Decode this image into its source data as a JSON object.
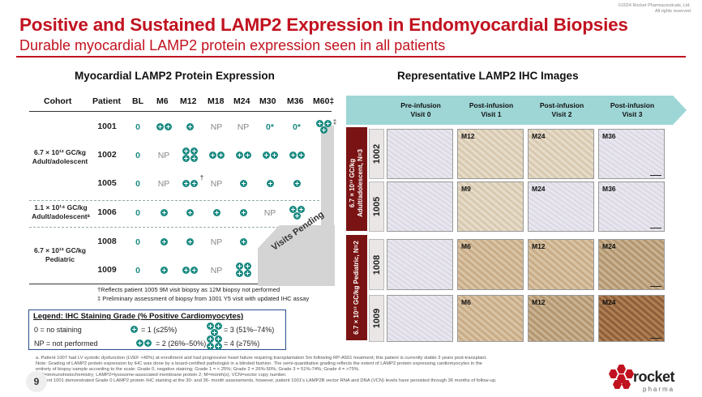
{
  "copyright": [
    "©2024 Rocket Pharmaceuticals, Ltd.",
    "All rights reserved"
  ],
  "title": "Positive and Sustained LAMP2 Expression in Endomyocardial Biopsies",
  "subtitle": "Durable myocardial LAMP2 protein expression seen in all patients",
  "left_panel": {
    "title": "Myocardial LAMP2 Protein Expression",
    "headers": [
      "Cohort",
      "Patient",
      "BL",
      "M6",
      "M12",
      "M18",
      "M24",
      "M30",
      "M36",
      "M60‡"
    ],
    "cohorts": [
      "6.7 × 10¹³ GC/kg Adult/adolescent",
      "1.1 × 10¹⁴ GC/kg Adult/adolescentᵃ",
      "6.7 × 10¹³ GC/kg Pediatric"
    ],
    "patients": [
      "1001",
      "1002",
      "1005",
      "1006",
      "1008",
      "1009"
    ],
    "bl": "0",
    "np": "NP",
    "zero": "0",
    "zero_star": "0*",
    "dagger": "†",
    "ddagger": "‡",
    "grades": {
      "1001": {
        "M6": 2,
        "M12": 1,
        "M18": "NP",
        "M24": "NP",
        "M30": "0*",
        "M36": "0*",
        "M60": 3
      },
      "1002": {
        "M6": "NP",
        "M12": 4,
        "M18": 2,
        "M24": 2,
        "M30": 2,
        "M36": 2
      },
      "1005": {
        "M6": "NP",
        "M12": 2,
        "M18": "NP",
        "M24": 1,
        "M30": 1,
        "M36": 1
      },
      "1006": {
        "M6": 1,
        "M12": 1,
        "M18": 1,
        "M24": 1,
        "M30": "NP",
        "M36": 3
      },
      "1008": {
        "M6": 1,
        "M12": 1,
        "M18": "NP",
        "M24": 1
      },
      "1009": {
        "M6": 1,
        "M12": 2,
        "M18": "NP",
        "M24": 4
      }
    },
    "visits_pending": "Visits Pending",
    "footnotes": [
      "†Reflects patient 1005 9M visit biopsy as 12M biopsy not performed",
      "‡ Preliminary assessment of biopsy from 1001 Y5 visit with updated IHC assay"
    ]
  },
  "legend": {
    "title": "Legend: IHC Staining Grade (% Positive Cardiomyocytes)",
    "items": [
      "0 = no staining",
      "NP = not performed",
      "= 1 (≤25%)",
      "= 2 (26%–50%)",
      "= 3 (51%–74%)",
      "= 4 (≥75%)"
    ]
  },
  "right_panel": {
    "title": "Representative LAMP2 IHC Images",
    "visits": [
      [
        "Pre-infusion",
        "Visit 0"
      ],
      [
        "Post-infusion",
        "Visit 1"
      ],
      [
        "Post-infusion",
        "Visit 2"
      ],
      [
        "Post-infusion",
        "Visit 3"
      ]
    ],
    "groups": [
      "6.7 × 10¹³ GC/kg Adult/adolescent, N=3",
      "6.7 × 10¹³ GC/kg Pediatric, N=2"
    ],
    "rows": [
      {
        "patient": "1002",
        "labels": [
          "",
          "M12",
          "M24",
          "M36"
        ]
      },
      {
        "patient": "1005",
        "labels": [
          "",
          "M9",
          "M24",
          "M36"
        ]
      },
      {
        "patient": "1008",
        "labels": [
          "",
          "M6",
          "M12",
          "M24"
        ]
      },
      {
        "patient": "1009",
        "labels": [
          "",
          "M6",
          "M12",
          "M24"
        ]
      }
    ],
    "scale": "100 µm"
  },
  "fine_print": [
    "a. Patient 1007 had LV systolic dysfunction (LVEF <40%) at enrollment and had progressive heart failure requiring transplantation 5m following RP-A501 treatment; this patient is currently stable 3 years post-transplant.",
    "Note: Grading of LAMP2 protein expression by IHC was done by a board-certified pathologist in a blinded fashion. The semi-quantitative grading reflects the extent of LAMP2 protein expressing cardiomyocytes in the",
    "entirety of biopsy sample according to the scale: Grade 0, negative staining; Grade 1 = < 25%; Grade 2 = 26%-50%; Grade 3 = 51%-74%; Grade 4 = >75%.",
    "IHC=immunohistochemistry; LAMP2=lysosome-associated membrane protein 2; M=month(s); VCN=vector copy number.",
    "*Patient 1001 demonstrated Grade 0 LAMP2 protein IHC staining at the 30- and 36- month assessments, however, patient 1001's LAMP2B vector RNA and DNA (VCN) levels have persisted through 36 months of follow-up."
  ],
  "page_number": "9",
  "logo": {
    "name": "rocket",
    "sub": "pharma"
  },
  "colors": {
    "red": "#c1121f",
    "teal": "#1b8a82",
    "maroon": "#7a1414",
    "arrow": "#9ed6d6"
  }
}
